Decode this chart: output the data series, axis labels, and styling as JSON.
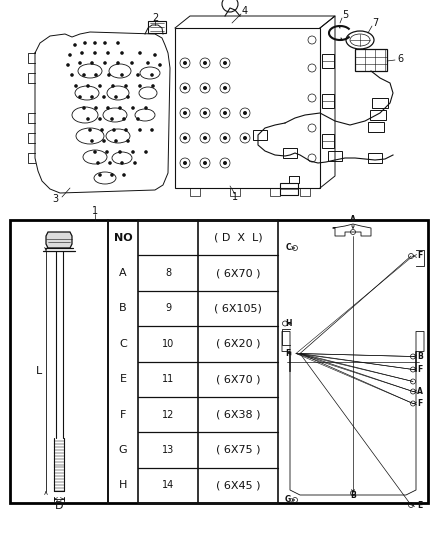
{
  "bg_color": "#ffffff",
  "table_rows": [
    {
      "letter": "A",
      "no": "8",
      "dim": "( 6X70 )"
    },
    {
      "letter": "B",
      "no": "9",
      "dim": "( 6X105)"
    },
    {
      "letter": "C",
      "no": "10",
      "dim": "( 6X20 )"
    },
    {
      "letter": "E",
      "no": "11",
      "dim": "( 6X70 )"
    },
    {
      "letter": "F",
      "no": "12",
      "dim": "( 6X38 )"
    },
    {
      "letter": "G",
      "no": "13",
      "dim": "( 6X75 )"
    },
    {
      "letter": "H",
      "no": "14",
      "dim": "( 6X45 )"
    }
  ],
  "table_header": {
    "letter": "NO",
    "no": "",
    "dim": "( D  X  L)"
  },
  "lc": "#111111",
  "tc": "#111111",
  "gray": "#888888",
  "fs_label": 7,
  "fs_table": 7.5,
  "fs_small": 5.5,
  "fig_w": 4.38,
  "fig_h": 5.33,
  "dpi": 100
}
